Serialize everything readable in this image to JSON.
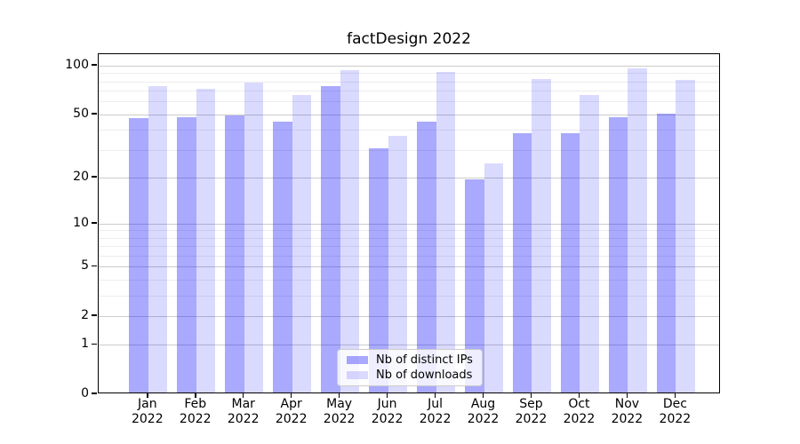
{
  "title": "factDesign 2022",
  "chart_data": {
    "type": "bar",
    "title": "factDesign 2022",
    "xlabel": "",
    "ylabel": "",
    "categories": [
      "Jan 2022",
      "Feb 2022",
      "Mar 2022",
      "Apr 2022",
      "May 2022",
      "Jun 2022",
      "Jul 2022",
      "Aug 2022",
      "Sep 2022",
      "Oct 2022",
      "Nov 2022",
      "Dec 2022"
    ],
    "x_months": [
      "Jan",
      "Feb",
      "Mar",
      "Apr",
      "May",
      "Jun",
      "Jul",
      "Aug",
      "Sep",
      "Oct",
      "Nov",
      "Dec"
    ],
    "x_year": "2022",
    "series": [
      {
        "name": "Nb of distinct IPs",
        "color": "rgba(10,10,250,0.35)",
        "values": [
          46,
          47,
          48,
          44,
          73,
          30,
          44,
          19,
          37,
          37,
          47,
          49
        ]
      },
      {
        "name": "Nb of downloads",
        "color": "rgba(10,10,250,0.15)",
        "values": [
          73,
          70,
          77,
          64,
          92,
          36,
          89,
          24,
          81,
          64,
          94,
          80
        ]
      }
    ],
    "yscale": "log1p",
    "ylim": [
      0,
      117.8
    ],
    "y_major_ticks": [
      0,
      1,
      2,
      5,
      10,
      20,
      50,
      100
    ],
    "y_minor_ticks": [
      3,
      4,
      6,
      7,
      8,
      9,
      30,
      40,
      60,
      70,
      80,
      90
    ],
    "grid": true,
    "legend_position": "lower center"
  },
  "legend": {
    "items": [
      {
        "label": "Nb of distinct IPs",
        "color": "rgba(10,10,250,0.35)"
      },
      {
        "label": "Nb of downloads",
        "color": "rgba(10,10,250,0.15)"
      }
    ]
  },
  "colors": {
    "bar_distinct_ips": "#a8a8f8",
    "bar_downloads": "#d9d9fb",
    "grid_major": "#cccccc",
    "grid_minor": "#ededed",
    "spine": "#000000",
    "background": "#ffffff"
  }
}
